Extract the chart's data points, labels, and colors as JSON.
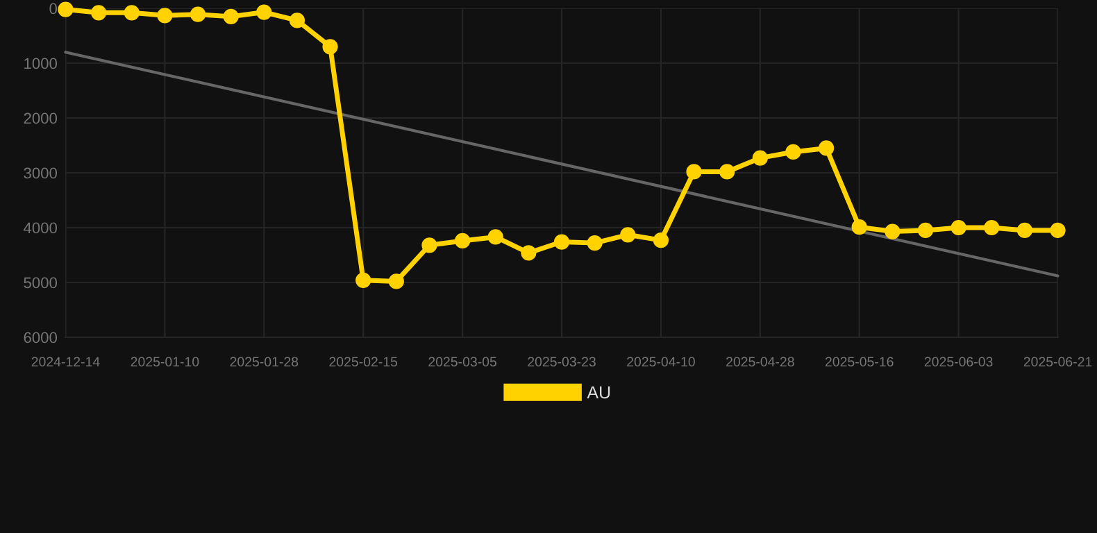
{
  "chart_data": {
    "type": "line",
    "categories": [
      "2024-12-14",
      null,
      null,
      "2025-01-10",
      null,
      null,
      "2025-01-28",
      null,
      null,
      "2025-02-15",
      null,
      null,
      "2025-03-05",
      null,
      null,
      "2025-03-23",
      null,
      null,
      "2025-04-10",
      null,
      null,
      "2025-04-28",
      null,
      null,
      "2025-05-16",
      null,
      null,
      "2025-06-03",
      null,
      null,
      "2025-06-21"
    ],
    "series": [
      {
        "name": "AU",
        "color": "#ffd200",
        "marker": "circle",
        "values": [
          20,
          80,
          80,
          130,
          110,
          150,
          70,
          220,
          700,
          4960,
          4980,
          4320,
          4240,
          4170,
          4460,
          4260,
          4280,
          4130,
          4230,
          2980,
          2980,
          2730,
          2620,
          2550,
          3990,
          4070,
          4050,
          4000,
          4000,
          4050,
          4050
        ]
      },
      {
        "color": "#666666",
        "marker": "none",
        "values": [
          800,
          null,
          null,
          null,
          null,
          null,
          null,
          null,
          null,
          null,
          null,
          null,
          null,
          null,
          null,
          null,
          null,
          null,
          null,
          null,
          null,
          null,
          null,
          null,
          null,
          null,
          null,
          null,
          null,
          null,
          4880
        ]
      }
    ],
    "ylim": [
      6000,
      0
    ],
    "yticks": [
      0,
      1000,
      2000,
      3000,
      4000,
      5000,
      6000
    ],
    "grid": true,
    "legend": "bottom"
  }
}
